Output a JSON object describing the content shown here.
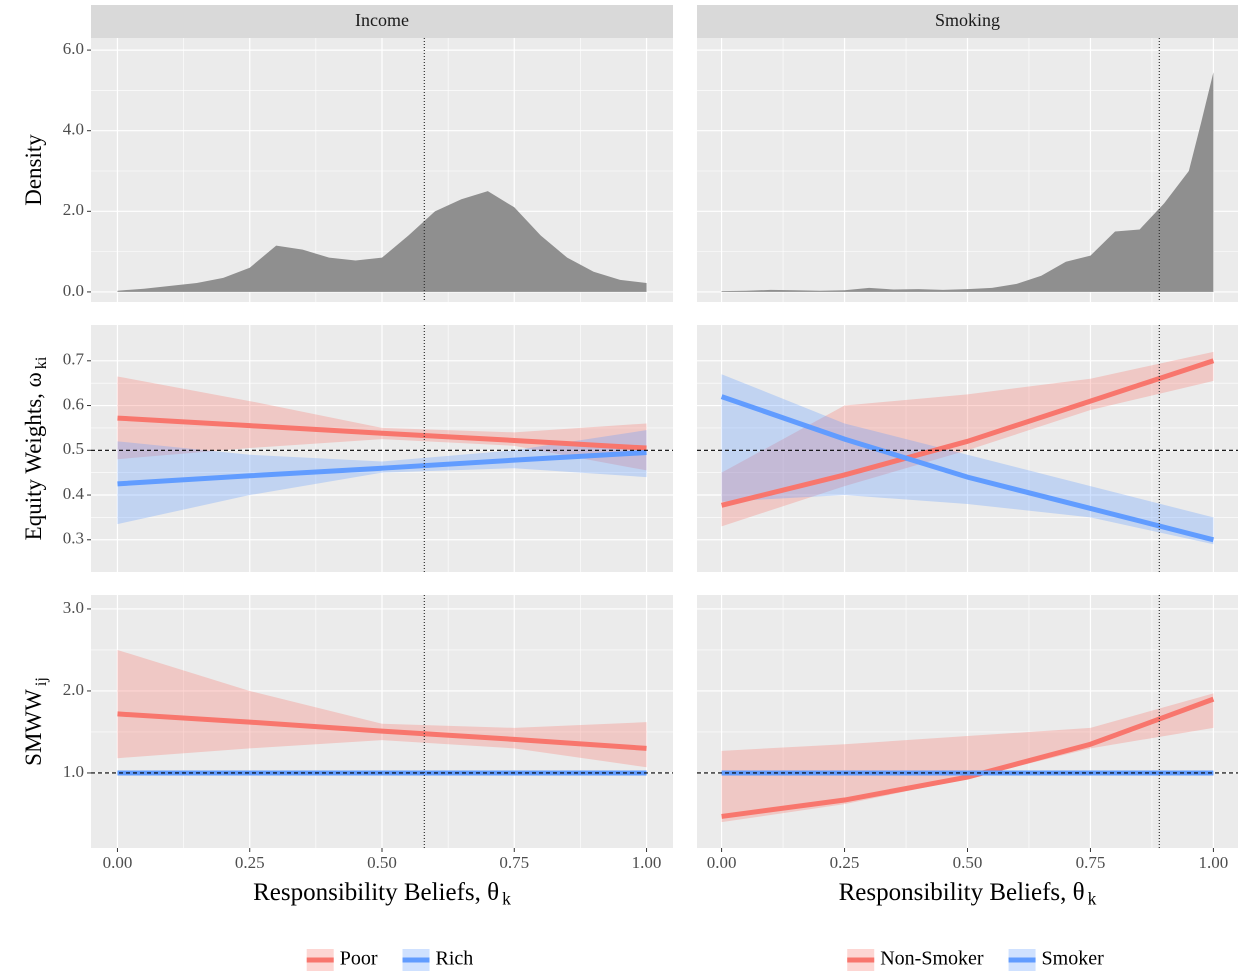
{
  "chart_data": {
    "type": "facet",
    "rows": [
      {
        "ylabel": "Density",
        "ylim": [
          -0.25,
          6.3
        ],
        "yticks": [
          {
            "value": 0,
            "label": "0.0"
          },
          {
            "value": 2,
            "label": "2.0"
          },
          {
            "value": 4,
            "label": "4.0"
          },
          {
            "value": 6,
            "label": "6.0"
          }
        ]
      },
      {
        "ylabel": "Equity Weights, ω",
        "ylabel_sub": "ki",
        "ylim": [
          0.228,
          0.78
        ],
        "yticks": [
          0.3,
          0.4,
          0.5,
          0.6,
          0.7
        ],
        "hline": 0.5
      },
      {
        "ylabel": "SMWW",
        "ylabel_sub": "ij",
        "ylim": [
          0.085,
          3.17
        ],
        "yticks": [
          {
            "value": 1,
            "label": "1.0"
          },
          {
            "value": 2,
            "label": "2.0"
          },
          {
            "value": 3,
            "label": "3.0"
          }
        ],
        "hline": 1
      }
    ],
    "columns": [
      {
        "title": "Income",
        "xlabel": "Responsibility Beliefs, θ",
        "xlabel_sub": "k",
        "xlim": [
          -0.05,
          1.05
        ],
        "xticks": [
          {
            "value": 0,
            "label": "0.00"
          },
          0.25,
          {
            "value": 0.5,
            "label": "0.50"
          },
          0.75,
          {
            "value": 1,
            "label": "1.00"
          }
        ],
        "vline": 0.58,
        "legend": "bottom",
        "groups": [
          {
            "name": "Poor",
            "color": "#f8766d"
          },
          {
            "name": "Rich",
            "color": "#619cff"
          }
        ],
        "panels": [
          {
            "type": "area",
            "color": "#8f8f8f",
            "x": [
              0,
              0.05,
              0.1,
              0.15,
              0.2,
              0.25,
              0.3,
              0.35,
              0.4,
              0.45,
              0.5,
              0.55,
              0.6,
              0.65,
              0.7,
              0.75,
              0.8,
              0.85,
              0.9,
              0.95,
              1
            ],
            "values": [
              0.03,
              0.08,
              0.15,
              0.22,
              0.35,
              0.6,
              1.15,
              1.05,
              0.85,
              0.78,
              0.85,
              1.4,
              2.0,
              2.3,
              2.5,
              2.1,
              1.4,
              0.85,
              0.5,
              0.3,
              0.22
            ]
          },
          {
            "type": "line",
            "x": [
              0,
              0.25,
              0.5,
              0.75,
              1
            ],
            "series": [
              {
                "values": [
                  0.572,
                  0.555,
                  0.538,
                  0.522,
                  0.505
                ],
                "lower": [
                  0.48,
                  0.505,
                  0.525,
                  0.51,
                  0.455
                ],
                "upper": [
                  0.665,
                  0.61,
                  0.55,
                  0.54,
                  0.56
                ]
              },
              {
                "values": [
                  0.425,
                  0.443,
                  0.46,
                  0.478,
                  0.495
                ],
                "lower": [
                  0.335,
                  0.4,
                  0.45,
                  0.46,
                  0.44
                ],
                "upper": [
                  0.52,
                  0.49,
                  0.475,
                  0.5,
                  0.545
                ]
              }
            ]
          },
          {
            "type": "line",
            "x": [
              0,
              0.25,
              0.5,
              0.75,
              1
            ],
            "series": [
              {
                "values": [
                  1.72,
                  1.62,
                  1.51,
                  1.41,
                  1.3
                ],
                "lower": [
                  1.18,
                  1.3,
                  1.4,
                  1.3,
                  1.07
                ],
                "upper": [
                  2.5,
                  2.0,
                  1.6,
                  1.55,
                  1.62
                ]
              },
              {
                "values": [
                  1,
                  1,
                  1,
                  1,
                  1
                ],
                "lower": [
                  0.97,
                  0.97,
                  0.97,
                  0.97,
                  0.97
                ],
                "upper": [
                  1.03,
                  1.03,
                  1.03,
                  1.03,
                  1.03
                ]
              }
            ]
          }
        ]
      },
      {
        "title": "Smoking",
        "xlabel": "Responsibility Beliefs, θ",
        "xlabel_sub": "k",
        "xlim": [
          -0.05,
          1.05
        ],
        "xticks": [
          {
            "value": 0,
            "label": "0.00"
          },
          0.25,
          {
            "value": 0.5,
            "label": "0.50"
          },
          0.75,
          {
            "value": 1,
            "label": "1.00"
          }
        ],
        "vline": 0.89,
        "legend": "bottom",
        "groups": [
          {
            "name": "Non-Smoker",
            "color": "#f8766d"
          },
          {
            "name": "Smoker",
            "color": "#619cff"
          }
        ],
        "panels": [
          {
            "type": "area",
            "color": "#8f8f8f",
            "x": [
              0,
              0.05,
              0.1,
              0.15,
              0.2,
              0.25,
              0.3,
              0.35,
              0.4,
              0.45,
              0.5,
              0.55,
              0.6,
              0.65,
              0.7,
              0.75,
              0.8,
              0.85,
              0.9,
              0.95,
              0.975,
              1
            ],
            "values": [
              0.02,
              0.03,
              0.05,
              0.04,
              0.03,
              0.04,
              0.1,
              0.06,
              0.07,
              0.05,
              0.07,
              0.1,
              0.2,
              0.4,
              0.75,
              0.9,
              1.5,
              1.55,
              2.2,
              3.0,
              4.2,
              5.45
            ]
          },
          {
            "type": "line",
            "x": [
              0,
              0.25,
              0.5,
              0.75,
              1
            ],
            "series": [
              {
                "values": [
                  0.377,
                  0.445,
                  0.52,
                  0.61,
                  0.7
                ],
                "lower": [
                  0.33,
                  0.42,
                  0.5,
                  0.59,
                  0.655
                ],
                "upper": [
                  0.45,
                  0.6,
                  0.625,
                  0.66,
                  0.72
                ]
              },
              {
                "values": [
                  0.62,
                  0.525,
                  0.44,
                  0.37,
                  0.3
                ],
                "lower": [
                  0.385,
                  0.4,
                  0.38,
                  0.35,
                  0.29
                ],
                "upper": [
                  0.67,
                  0.56,
                  0.49,
                  0.42,
                  0.35
                ]
              }
            ]
          },
          {
            "type": "line",
            "x": [
              0,
              0.25,
              0.5,
              0.75,
              1
            ],
            "series": [
              {
                "values": [
                  0.47,
                  0.67,
                  0.95,
                  1.35,
                  1.9
                ],
                "lower": [
                  0.4,
                  0.62,
                  0.93,
                  1.3,
                  1.55
                ],
                "upper": [
                  1.27,
                  1.35,
                  1.45,
                  1.55,
                  1.97
                ]
              },
              {
                "values": [
                  1,
                  1,
                  1,
                  1,
                  1
                ],
                "lower": [
                  0.97,
                  0.97,
                  0.97,
                  0.97,
                  0.97
                ],
                "upper": [
                  1.03,
                  1.03,
                  1.03,
                  1.03,
                  1.03
                ]
              }
            ]
          }
        ]
      }
    ]
  }
}
